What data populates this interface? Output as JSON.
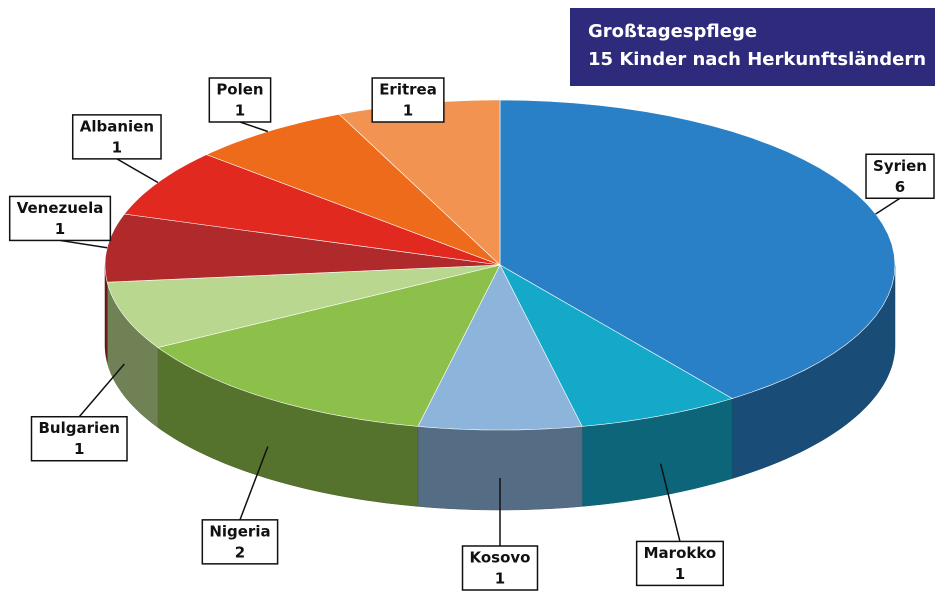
{
  "chart_data": {
    "type": "pie3d",
    "title": "Großtagespflege",
    "subtitle": "15 Kinder nach Herkunftsländern",
    "categories": [
      "Syrien",
      "Marokko",
      "Kosovo",
      "Nigeria",
      "Bulgarien",
      "Venezuela",
      "Albanien",
      "Polen",
      "Eritrea"
    ],
    "values": [
      6,
      1,
      1,
      2,
      1,
      1,
      1,
      1,
      1
    ],
    "colors": [
      "#2a80c6",
      "#14a9c9",
      "#8db5dc",
      "#8dc04a",
      "#bad78f",
      "#b0292b",
      "#e2291f",
      "#ee6b1c",
      "#f39352"
    ]
  }
}
